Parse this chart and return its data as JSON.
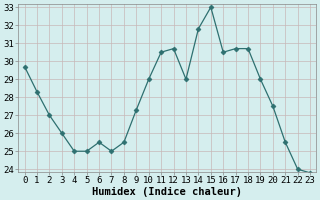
{
  "x": [
    0,
    1,
    2,
    3,
    4,
    5,
    6,
    7,
    8,
    9,
    10,
    11,
    12,
    13,
    14,
    15,
    16,
    17,
    18,
    19,
    20,
    21,
    22,
    23
  ],
  "y": [
    29.7,
    28.3,
    27.0,
    26.0,
    25.0,
    25.0,
    25.5,
    25.0,
    25.5,
    27.3,
    29.0,
    30.5,
    30.7,
    29.0,
    31.8,
    33.0,
    30.5,
    30.7,
    30.7,
    29.0,
    27.5,
    25.5,
    24.0,
    23.8
  ],
  "line_color": "#2e7070",
  "marker": "D",
  "marker_size": 2.5,
  "bg_color": "#d5eeee",
  "grid_color": "#c8b8b8",
  "xlabel": "Humidex (Indice chaleur)",
  "xlabel_fontsize": 7.5,
  "tick_fontsize": 6.5,
  "ylim": [
    24,
    33
  ],
  "yticks": [
    24,
    25,
    26,
    27,
    28,
    29,
    30,
    31,
    32,
    33
  ],
  "xticks": [
    0,
    1,
    2,
    3,
    4,
    5,
    6,
    7,
    8,
    9,
    10,
    11,
    12,
    13,
    14,
    15,
    16,
    17,
    18,
    19,
    20,
    21,
    22,
    23
  ]
}
